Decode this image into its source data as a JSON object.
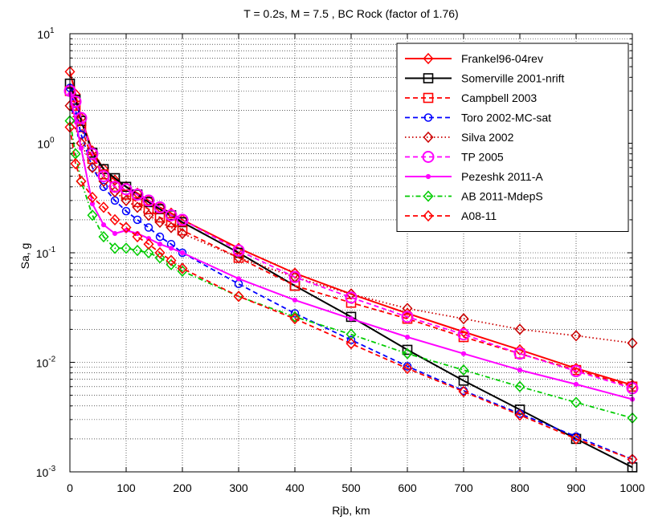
{
  "chart_data": {
    "type": "line",
    "title": "T = 0.2s, M = 7.5 , BC Rock (factor of  1.76)",
    "xlabel": "Rjb, km",
    "ylabel": "Sa, g",
    "xlim": [
      0,
      1000
    ],
    "ylim": [
      0.001,
      10
    ],
    "yscale": "log",
    "grid": true,
    "legend_position": "top-right",
    "x_ticks": [
      "0",
      "100",
      "200",
      "300",
      "400",
      "500",
      "600",
      "700",
      "800",
      "900",
      "1000"
    ],
    "y_ticks": [
      {
        "base": "10",
        "exp": "-3",
        "value": 0.001
      },
      {
        "base": "10",
        "exp": "-2",
        "value": 0.01
      },
      {
        "base": "10",
        "exp": "-1",
        "value": 0.1
      },
      {
        "base": "10",
        "exp": "0",
        "value": 1
      },
      {
        "base": "10",
        "exp": "1",
        "value": 10
      }
    ],
    "series": [
      {
        "name": "Frankel96-04rev",
        "color": "#ff0000",
        "dash": "solid",
        "marker": "diamond",
        "x": [
          0,
          10,
          20,
          40,
          60,
          80,
          100,
          120,
          140,
          160,
          180,
          200,
          300,
          400,
          500,
          600,
          700,
          800,
          900,
          1000
        ],
        "y": [
          4.5,
          2.8,
          1.7,
          0.85,
          0.58,
          0.46,
          0.4,
          0.35,
          0.3,
          0.26,
          0.23,
          0.2,
          0.11,
          0.065,
          0.042,
          0.028,
          0.019,
          0.013,
          0.0088,
          0.0062
        ]
      },
      {
        "name": "Somerville 2001-nrift",
        "color": "#000000",
        "dash": "solid",
        "marker": "square",
        "x": [
          0,
          10,
          20,
          40,
          60,
          80,
          100,
          120,
          140,
          160,
          180,
          200,
          300,
          400,
          500,
          600,
          700,
          800,
          900,
          1000
        ],
        "y": [
          3.5,
          2.5,
          1.6,
          0.82,
          0.58,
          0.48,
          0.4,
          0.34,
          0.29,
          0.25,
          0.22,
          0.19,
          0.1,
          0.05,
          0.026,
          0.013,
          0.0068,
          0.0037,
          0.002,
          0.0011
        ]
      },
      {
        "name": "Campbell 2003",
        "color": "#ff0000",
        "dash": "dash",
        "marker": "square",
        "x": [
          0,
          10,
          20,
          40,
          60,
          80,
          100,
          120,
          140,
          160,
          180,
          200,
          300,
          400,
          500,
          600,
          700,
          800,
          900,
          1000
        ],
        "y": [
          3.0,
          2.2,
          1.4,
          0.72,
          0.52,
          0.4,
          0.34,
          0.29,
          0.25,
          0.21,
          0.19,
          0.16,
          0.09,
          0.05,
          0.035,
          0.025,
          0.017,
          0.012,
          0.0085,
          0.006
        ]
      },
      {
        "name": "Toro 2002-MC-sat",
        "color": "#0000ff",
        "dash": "dash",
        "marker": "circle",
        "x": [
          0,
          10,
          20,
          40,
          60,
          80,
          100,
          120,
          140,
          160,
          180,
          200,
          300,
          400,
          500,
          600,
          700,
          800,
          900,
          1000
        ],
        "y": [
          3.2,
          2.0,
          1.2,
          0.6,
          0.4,
          0.3,
          0.24,
          0.2,
          0.17,
          0.14,
          0.12,
          0.1,
          0.052,
          0.028,
          0.016,
          0.0092,
          0.0055,
          0.0034,
          0.0021,
          0.0013
        ]
      },
      {
        "name": "Silva 2002",
        "color": "#cc0000",
        "dash": "dot",
        "marker": "diamond",
        "x": [
          0,
          10,
          20,
          40,
          60,
          80,
          100,
          120,
          140,
          160,
          180,
          200,
          300,
          400,
          500,
          600,
          700,
          800,
          900,
          1000
        ],
        "y": [
          2.2,
          1.5,
          1.0,
          0.6,
          0.45,
          0.36,
          0.3,
          0.26,
          0.22,
          0.19,
          0.17,
          0.15,
          0.09,
          0.06,
          0.042,
          0.031,
          0.025,
          0.02,
          0.0175,
          0.015
        ]
      },
      {
        "name": "TP 2005",
        "color": "#ff00ff",
        "dash": "dash",
        "marker": "circle-large",
        "x": [
          0,
          10,
          20,
          40,
          60,
          80,
          100,
          120,
          140,
          160,
          180,
          200,
          300,
          400,
          500,
          600,
          700,
          800,
          900,
          1000
        ],
        "y": [
          3.0,
          2.4,
          1.7,
          0.8,
          0.5,
          0.4,
          0.38,
          0.34,
          0.3,
          0.26,
          0.22,
          0.2,
          0.105,
          0.06,
          0.039,
          0.026,
          0.018,
          0.012,
          0.0083,
          0.0058
        ]
      },
      {
        "name": "Pezeshk 2011-A",
        "color": "#ff00ff",
        "dash": "solid",
        "marker": "dot",
        "x": [
          0,
          10,
          20,
          40,
          60,
          80,
          100,
          120,
          140,
          160,
          180,
          200,
          300,
          400,
          500,
          600,
          700,
          800,
          900,
          1000
        ],
        "y": [
          2.8,
          1.6,
          0.9,
          0.28,
          0.18,
          0.15,
          0.16,
          0.15,
          0.135,
          0.12,
          0.11,
          0.1,
          0.058,
          0.037,
          0.025,
          0.017,
          0.012,
          0.0085,
          0.0063,
          0.0046
        ]
      },
      {
        "name": "AB 2011-MdepS",
        "color": "#00cc00",
        "dash": "dashdot",
        "marker": "diamond",
        "x": [
          0,
          10,
          20,
          40,
          60,
          80,
          100,
          120,
          140,
          160,
          180,
          200,
          300,
          400,
          500,
          600,
          700,
          800,
          900,
          1000
        ],
        "y": [
          1.6,
          0.8,
          0.45,
          0.22,
          0.14,
          0.11,
          0.11,
          0.105,
          0.1,
          0.09,
          0.078,
          0.068,
          0.04,
          0.026,
          0.018,
          0.012,
          0.0085,
          0.006,
          0.0043,
          0.0031
        ]
      },
      {
        "name": "A08-11",
        "color": "#ff0000",
        "dash": "dash",
        "marker": "diamond",
        "x": [
          0,
          10,
          20,
          40,
          60,
          80,
          100,
          120,
          140,
          160,
          180,
          200,
          300,
          400,
          500,
          600,
          700,
          800,
          900,
          1000
        ],
        "y": [
          1.4,
          0.65,
          0.45,
          0.32,
          0.26,
          0.2,
          0.17,
          0.14,
          0.12,
          0.1,
          0.085,
          0.072,
          0.04,
          0.025,
          0.0148,
          0.0088,
          0.0054,
          0.0033,
          0.002,
          0.0013
        ]
      }
    ]
  }
}
